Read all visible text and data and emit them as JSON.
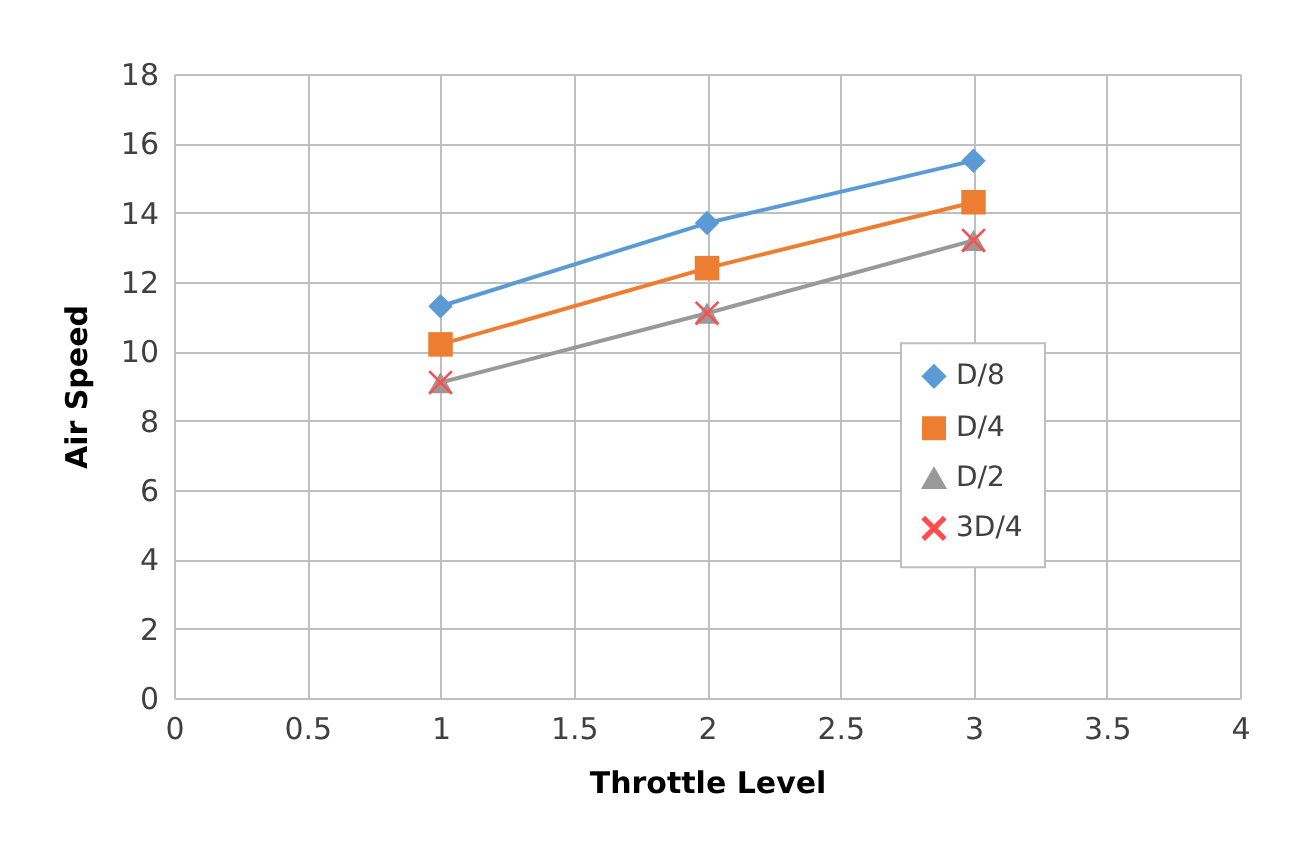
{
  "chart_data": {
    "type": "line",
    "xlabel": "Throttle Level",
    "ylabel": "Air Speed",
    "x": [
      1,
      2,
      3
    ],
    "series": [
      {
        "name": "D/8",
        "color": "#5b9bd5",
        "marker": "diamond",
        "values": [
          11.3,
          13.7,
          15.5
        ]
      },
      {
        "name": "D/4",
        "color": "#ed7d31",
        "marker": "square",
        "values": [
          10.2,
          12.4,
          14.3
        ]
      },
      {
        "name": "D/2",
        "color": "#999999",
        "marker": "triangle",
        "values": [
          9.1,
          11.1,
          13.2
        ]
      },
      {
        "name": "3D/4",
        "type": "scatter",
        "color": "#ff4d4d",
        "marker": "cross",
        "values": [
          9.1,
          11.1,
          13.2
        ]
      }
    ],
    "xlim": [
      0,
      4
    ],
    "xticks": [
      0,
      0.5,
      1,
      1.5,
      2,
      2.5,
      3,
      3.5,
      4
    ],
    "ylim": [
      0,
      18
    ],
    "yticks": [
      0,
      2,
      4,
      6,
      8,
      10,
      12,
      14,
      16,
      18
    ],
    "grid": true,
    "legend": "right"
  }
}
